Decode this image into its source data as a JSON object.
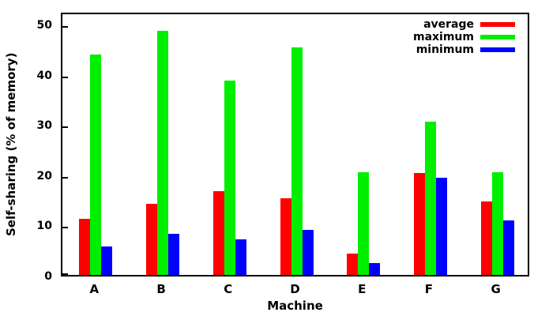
{
  "chart_data": {
    "type": "bar",
    "title": "",
    "categories": [
      "A",
      "B",
      "C",
      "D",
      "E",
      "F",
      "G"
    ],
    "series": [
      {
        "name": "average",
        "color": "#ff0000",
        "values": [
          11.2,
          14.2,
          16.7,
          15.3,
          4.3,
          20.3,
          14.6
        ]
      },
      {
        "name": "maximum",
        "color": "#00ee00",
        "values": [
          43.8,
          48.5,
          38.6,
          45.3,
          20.5,
          30.5,
          20.5
        ]
      },
      {
        "name": "minimum",
        "color": "#0000ff",
        "values": [
          5.6,
          8.1,
          7.1,
          8.9,
          2.3,
          19.3,
          10.8
        ]
      }
    ],
    "xlabel": "Machine",
    "ylabel": "Self-sharing (% of memory)",
    "yticks": [
      0,
      10,
      20,
      30,
      40,
      50
    ],
    "ylim": [
      0,
      52.5
    ],
    "grid": false,
    "legend_position": "top-right",
    "frame_color": "#000000",
    "background_color": "#ffffff"
  }
}
